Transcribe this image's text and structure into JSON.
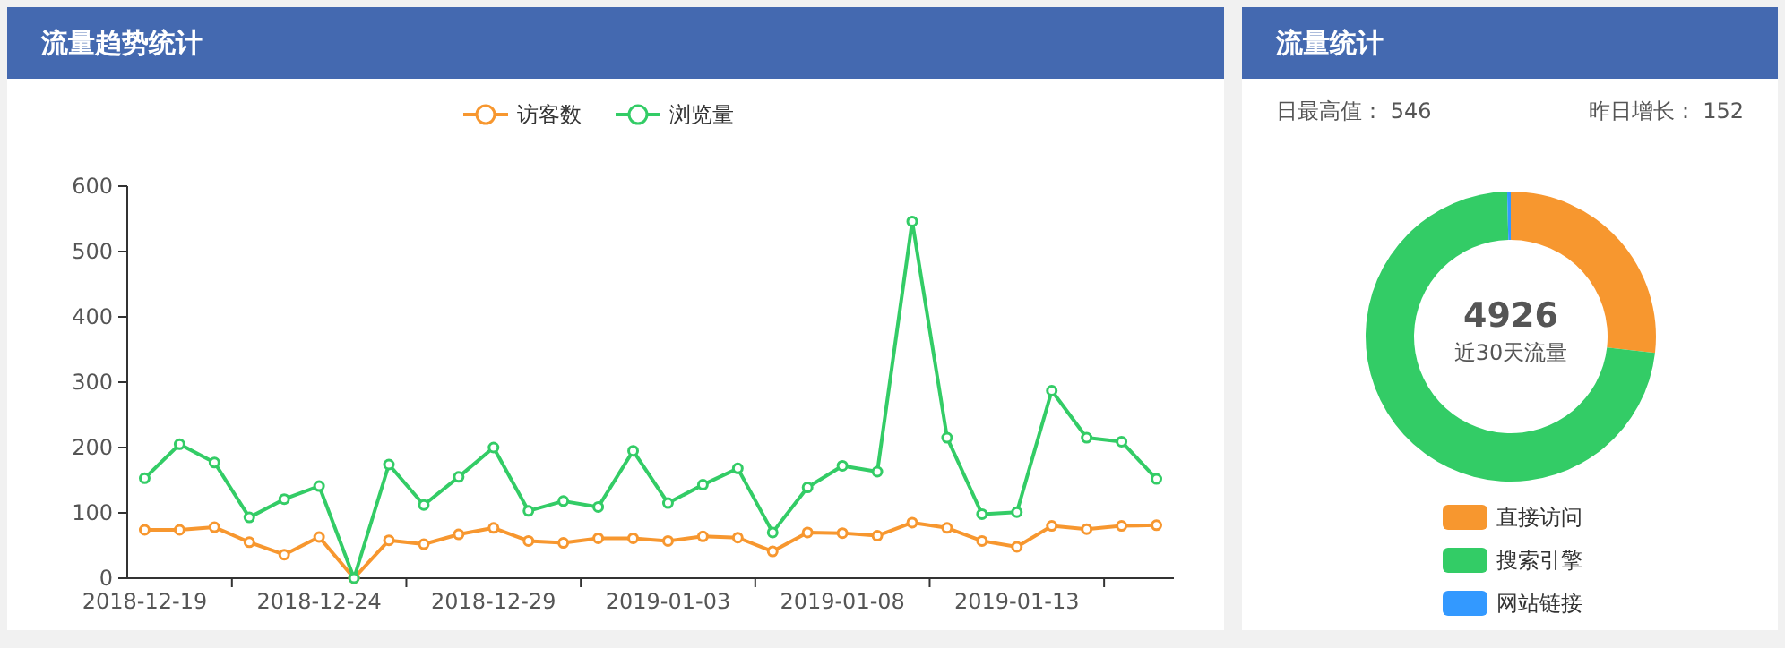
{
  "chart_data": [
    {
      "type": "line",
      "title": "流量趋势统计",
      "categories": [
        "2018-12-19",
        null,
        null,
        null,
        null,
        "2018-12-24",
        null,
        null,
        null,
        null,
        "2018-12-29",
        null,
        null,
        null,
        null,
        "2019-01-03",
        null,
        null,
        null,
        null,
        "2019-01-08",
        null,
        null,
        null,
        null,
        "2019-01-13",
        null,
        null,
        null,
        null
      ],
      "series": [
        {
          "name": "访客数",
          "color": "#f7972f",
          "values": [
            74,
            74,
            78,
            55,
            36,
            63,
            0,
            58,
            52,
            67,
            77,
            57,
            54,
            61,
            61,
            57,
            64,
            62,
            41,
            70,
            69,
            65,
            85,
            77,
            57,
            48,
            80,
            75,
            80,
            81
          ]
        },
        {
          "name": "浏览量",
          "color": "#33cc66",
          "values": [
            153,
            205,
            177,
            93,
            121,
            141,
            0,
            174,
            112,
            155,
            200,
            103,
            118,
            109,
            195,
            115,
            143,
            168,
            70,
            139,
            172,
            163,
            546,
            215,
            98,
            101,
            287,
            215,
            209,
            152
          ]
        }
      ],
      "ylim": [
        0,
        600
      ],
      "yticks": [
        0,
        100,
        200,
        300,
        400,
        500,
        600
      ],
      "grid": false,
      "legend": "top",
      "marker": "circle",
      "line_style": "solid"
    },
    {
      "type": "donut",
      "title": "流量统计",
      "categories": [
        "直接访问",
        "搜索引擎",
        "网站链接"
      ],
      "values": [
        26.8,
        72.8,
        0.4
      ],
      "colors": [
        "#f7972f",
        "#33cc66",
        "#3399ff"
      ],
      "legend": "bottom",
      "annotations": [
        "日最高值： 546",
        "昨日增长： 152",
        "4926",
        "近30天流量"
      ]
    }
  ]
}
